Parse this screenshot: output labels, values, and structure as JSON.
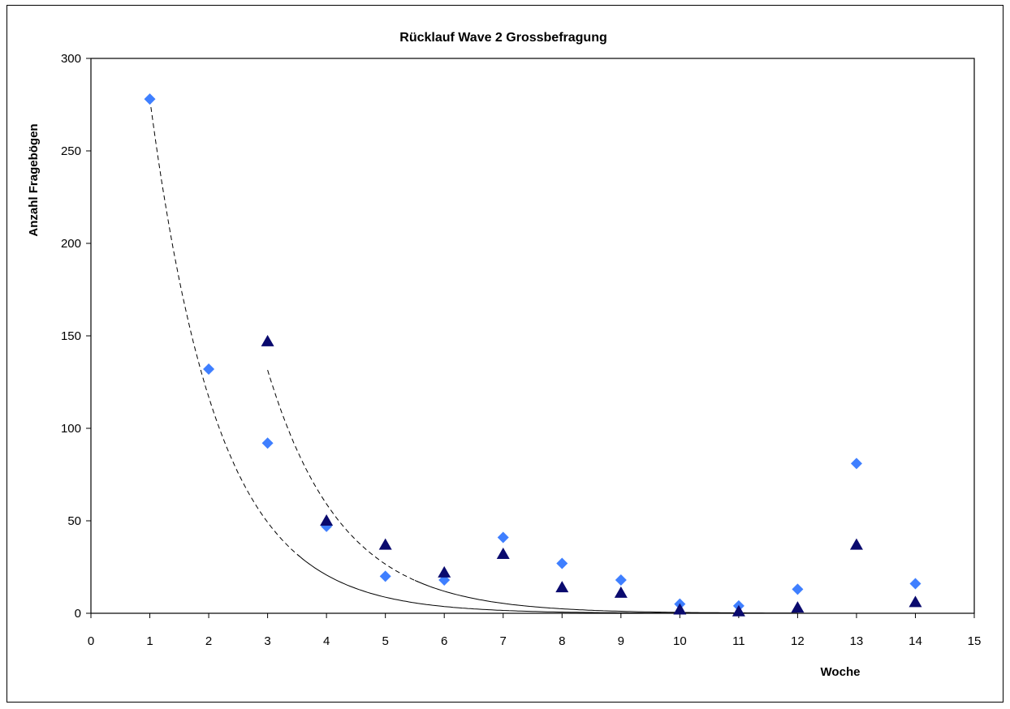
{
  "chart_data": {
    "type": "scatter",
    "title": "Rücklauf Wave 2 Grossbefragung",
    "xlabel": "Woche",
    "ylabel": "Anzahl Fragebögen",
    "xlim": [
      0,
      15
    ],
    "ylim": [
      0,
      300
    ],
    "xticks": [
      0,
      1,
      2,
      3,
      4,
      5,
      6,
      7,
      8,
      9,
      10,
      11,
      12,
      13,
      14,
      15
    ],
    "yticks": [
      0,
      50,
      100,
      150,
      200,
      250,
      300
    ],
    "grid": false,
    "legend": "none",
    "series": [
      {
        "marker": "diamond",
        "color": "#3f7fff",
        "x": [
          1,
          2,
          3,
          4,
          5,
          6,
          7,
          8,
          9,
          10,
          11,
          12,
          13,
          14
        ],
        "y": [
          278,
          132,
          92,
          47,
          20,
          18,
          41,
          27,
          18,
          5,
          4,
          13,
          81,
          16
        ]
      },
      {
        "marker": "triangle",
        "color": "#0a0a6e",
        "x": [
          3,
          4,
          5,
          6,
          7,
          8,
          9,
          10,
          11,
          12,
          13,
          14
        ],
        "y": [
          147,
          50,
          37,
          22,
          32,
          14,
          11,
          2,
          1,
          3,
          37,
          6
        ]
      }
    ],
    "trendlines": [
      {
        "type": "exponential",
        "of_series": 0,
        "x_range": [
          1,
          12
        ],
        "a": 661,
        "b": -0.866,
        "style": "dashed-then-solid"
      },
      {
        "type": "exponential",
        "of_series": 1,
        "x_range": [
          3,
          12
        ],
        "a": 1450,
        "b": -0.8,
        "style": "dashed-then-solid"
      }
    ]
  }
}
